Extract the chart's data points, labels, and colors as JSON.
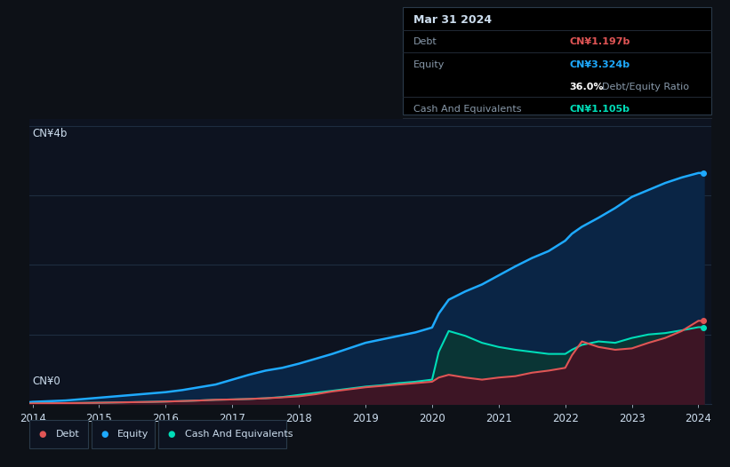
{
  "background_color": "#0d1117",
  "plot_bg_color": "#0d1320",
  "title": "Mar 31 2024",
  "ylabel_top": "CN¥4b",
  "ylabel_bottom": "CN¥0",
  "x_ticks": [
    2014,
    2015,
    2016,
    2017,
    2018,
    2019,
    2020,
    2021,
    2022,
    2023,
    2024
  ],
  "years": [
    2013.9,
    2014.0,
    2014.25,
    2014.5,
    2014.75,
    2015.0,
    2015.25,
    2015.5,
    2015.75,
    2016.0,
    2016.25,
    2016.5,
    2016.75,
    2017.0,
    2017.25,
    2017.5,
    2017.75,
    2018.0,
    2018.25,
    2018.5,
    2018.75,
    2019.0,
    2019.25,
    2019.5,
    2019.75,
    2020.0,
    2020.1,
    2020.25,
    2020.5,
    2020.75,
    2021.0,
    2021.25,
    2021.5,
    2021.75,
    2022.0,
    2022.1,
    2022.25,
    2022.5,
    2022.75,
    2023.0,
    2023.25,
    2023.5,
    2023.75,
    2024.0,
    2024.08
  ],
  "equity": [
    0.02,
    0.03,
    0.04,
    0.05,
    0.07,
    0.09,
    0.11,
    0.13,
    0.15,
    0.17,
    0.2,
    0.24,
    0.28,
    0.35,
    0.42,
    0.48,
    0.52,
    0.58,
    0.65,
    0.72,
    0.8,
    0.88,
    0.93,
    0.98,
    1.03,
    1.1,
    1.3,
    1.5,
    1.62,
    1.72,
    1.85,
    1.98,
    2.1,
    2.2,
    2.35,
    2.45,
    2.55,
    2.68,
    2.82,
    2.98,
    3.08,
    3.18,
    3.26,
    3.324,
    3.324
  ],
  "debt": [
    0.005,
    0.008,
    0.01,
    0.012,
    0.015,
    0.018,
    0.022,
    0.026,
    0.03,
    0.035,
    0.042,
    0.05,
    0.06,
    0.065,
    0.072,
    0.082,
    0.095,
    0.11,
    0.14,
    0.18,
    0.21,
    0.24,
    0.26,
    0.28,
    0.3,
    0.32,
    0.38,
    0.42,
    0.38,
    0.35,
    0.38,
    0.4,
    0.45,
    0.48,
    0.52,
    0.7,
    0.9,
    0.82,
    0.78,
    0.8,
    0.88,
    0.95,
    1.05,
    1.197,
    1.197
  ],
  "cash": [
    0.005,
    0.008,
    0.01,
    0.012,
    0.015,
    0.018,
    0.022,
    0.026,
    0.03,
    0.035,
    0.042,
    0.05,
    0.06,
    0.065,
    0.072,
    0.082,
    0.1,
    0.13,
    0.16,
    0.19,
    0.22,
    0.25,
    0.27,
    0.3,
    0.32,
    0.35,
    0.75,
    1.05,
    0.98,
    0.88,
    0.82,
    0.78,
    0.75,
    0.72,
    0.72,
    0.78,
    0.85,
    0.9,
    0.88,
    0.95,
    1.0,
    1.02,
    1.06,
    1.105,
    1.105
  ],
  "equity_color": "#1eaaff",
  "debt_color": "#e05555",
  "cash_color": "#00ddb8",
  "equity_fill_color": "#0a2545",
  "debt_fill_color": "#3d1525",
  "cash_fill_color": "#0a3535",
  "grid_color": "#1e2d40",
  "text_color": "#ccddee",
  "dim_text_color": "#8899aa",
  "tooltip_bg": "#000000",
  "tooltip_border": "#2a3a4a",
  "legend_bg": "#0d1320",
  "legend_border": "#2a3a4a",
  "tooltip_debt_color": "#e05555",
  "tooltip_equity_color": "#1eaaff",
  "tooltip_cash_color": "#00ddb8",
  "tooltip_ratio_white": "#ffffff",
  "tooltip_ratio_gray": "#8899aa",
  "ylim": [
    0,
    4.1
  ],
  "xlim": [
    2013.95,
    2024.2
  ]
}
